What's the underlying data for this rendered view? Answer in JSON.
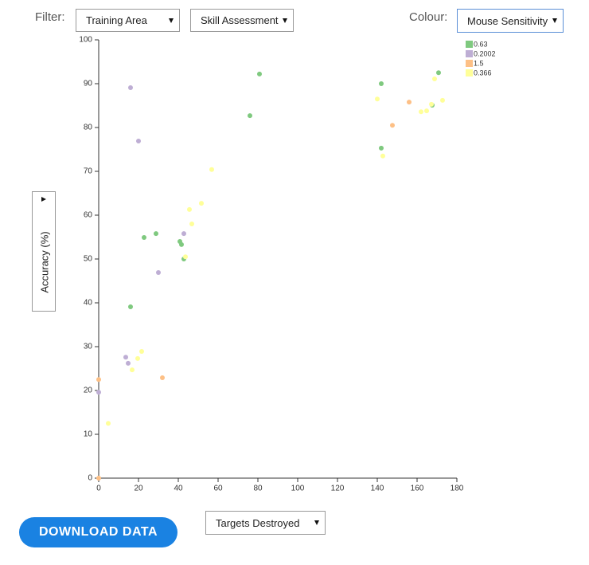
{
  "ui": {
    "filter_label": "Filter:",
    "filter_1": "Training Area",
    "filter_2": "Skill Assessment",
    "colour_label": "Colour:",
    "colour_select": "Mouse Sensitivity",
    "y_select": "Accuracy (%)",
    "x_select": "Targets Destroyed",
    "download_button": "DOWNLOAD DATA"
  },
  "chart_data": {
    "type": "scatter",
    "xlim": [
      0,
      180
    ],
    "xticks": [
      0,
      20,
      40,
      60,
      80,
      100,
      120,
      140,
      160,
      180
    ],
    "ylim": [
      0,
      100
    ],
    "yticks": [
      0,
      10,
      20,
      30,
      40,
      50,
      60,
      70,
      80,
      90,
      100
    ],
    "legend": "top-right",
    "series": [
      {
        "name": "0.63",
        "color": "#7fc97f",
        "x": [
          80.8,
          76,
          142,
          170.8,
          142,
          167.6,
          22.8,
          28.8,
          40.8,
          41.6,
          42.8,
          16
        ],
        "values": [
          92.2,
          82.7,
          90,
          92.5,
          75.3,
          85.1,
          54.9,
          55.8,
          54,
          53.3,
          50,
          39.1
        ]
      },
      {
        "name": "0.2002",
        "color": "#beaed4",
        "x": [
          16,
          20,
          42.8,
          30,
          13.6,
          14.8,
          0
        ],
        "values": [
          89.1,
          76.9,
          55.8,
          46.9,
          27.6,
          26.2,
          19.6
        ]
      },
      {
        "name": "1.5",
        "color": "#fdc086",
        "x": [
          156,
          147.6,
          32,
          0,
          0
        ],
        "values": [
          85.8,
          80.5,
          22.9,
          22.5,
          0
        ]
      },
      {
        "name": "0.366",
        "color": "#ffff99",
        "x": [
          140,
          142.8,
          168.8,
          172.8,
          162,
          164.8,
          167.2,
          56.8,
          51.6,
          45.6,
          46.8,
          43.6,
          21.6,
          19.6,
          16.8,
          4.8
        ],
        "values": [
          86.5,
          73.5,
          91.1,
          86.2,
          83.6,
          83.8,
          85.3,
          70.4,
          62.7,
          61.3,
          58,
          50.5,
          28.9,
          27.3,
          24.7,
          12.5
        ]
      }
    ]
  }
}
